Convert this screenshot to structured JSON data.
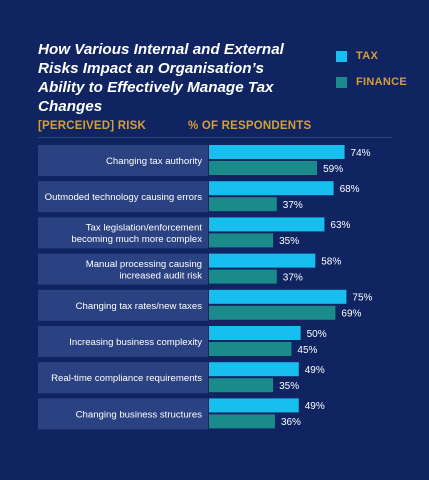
{
  "chart_data": {
    "type": "bar",
    "orientation": "horizontal",
    "title": "How Various Internal and External Risks Impact an Organisation’s Ability to Effectively Manage Tax Changes",
    "category_header": "[PERCEIVED] RISK",
    "value_header": "% OF RESPONDENTS",
    "categories": [
      [
        "Changing tax authority"
      ],
      [
        "Outmoded technology causing errors"
      ],
      [
        "Tax legislation/enforcement",
        "becoming much more complex"
      ],
      [
        "Manual processing causing",
        "increased audit risk"
      ],
      [
        "Changing tax rates/new taxes"
      ],
      [
        "Increasing business complexity"
      ],
      [
        "Real-time compliance requirements"
      ],
      [
        "Changing business structures"
      ]
    ],
    "series": [
      {
        "name": "TAX",
        "color": "#17bfee",
        "values": [
          74,
          68,
          63,
          58,
          75,
          50,
          49,
          49
        ]
      },
      {
        "name": "FINANCE",
        "color": "#1b8a8b",
        "values": [
          59,
          37,
          35,
          37,
          69,
          45,
          35,
          36
        ]
      }
    ],
    "value_suffix": "%",
    "xlim": [
      0,
      100
    ],
    "grid": false,
    "legend_position": "top-right"
  }
}
